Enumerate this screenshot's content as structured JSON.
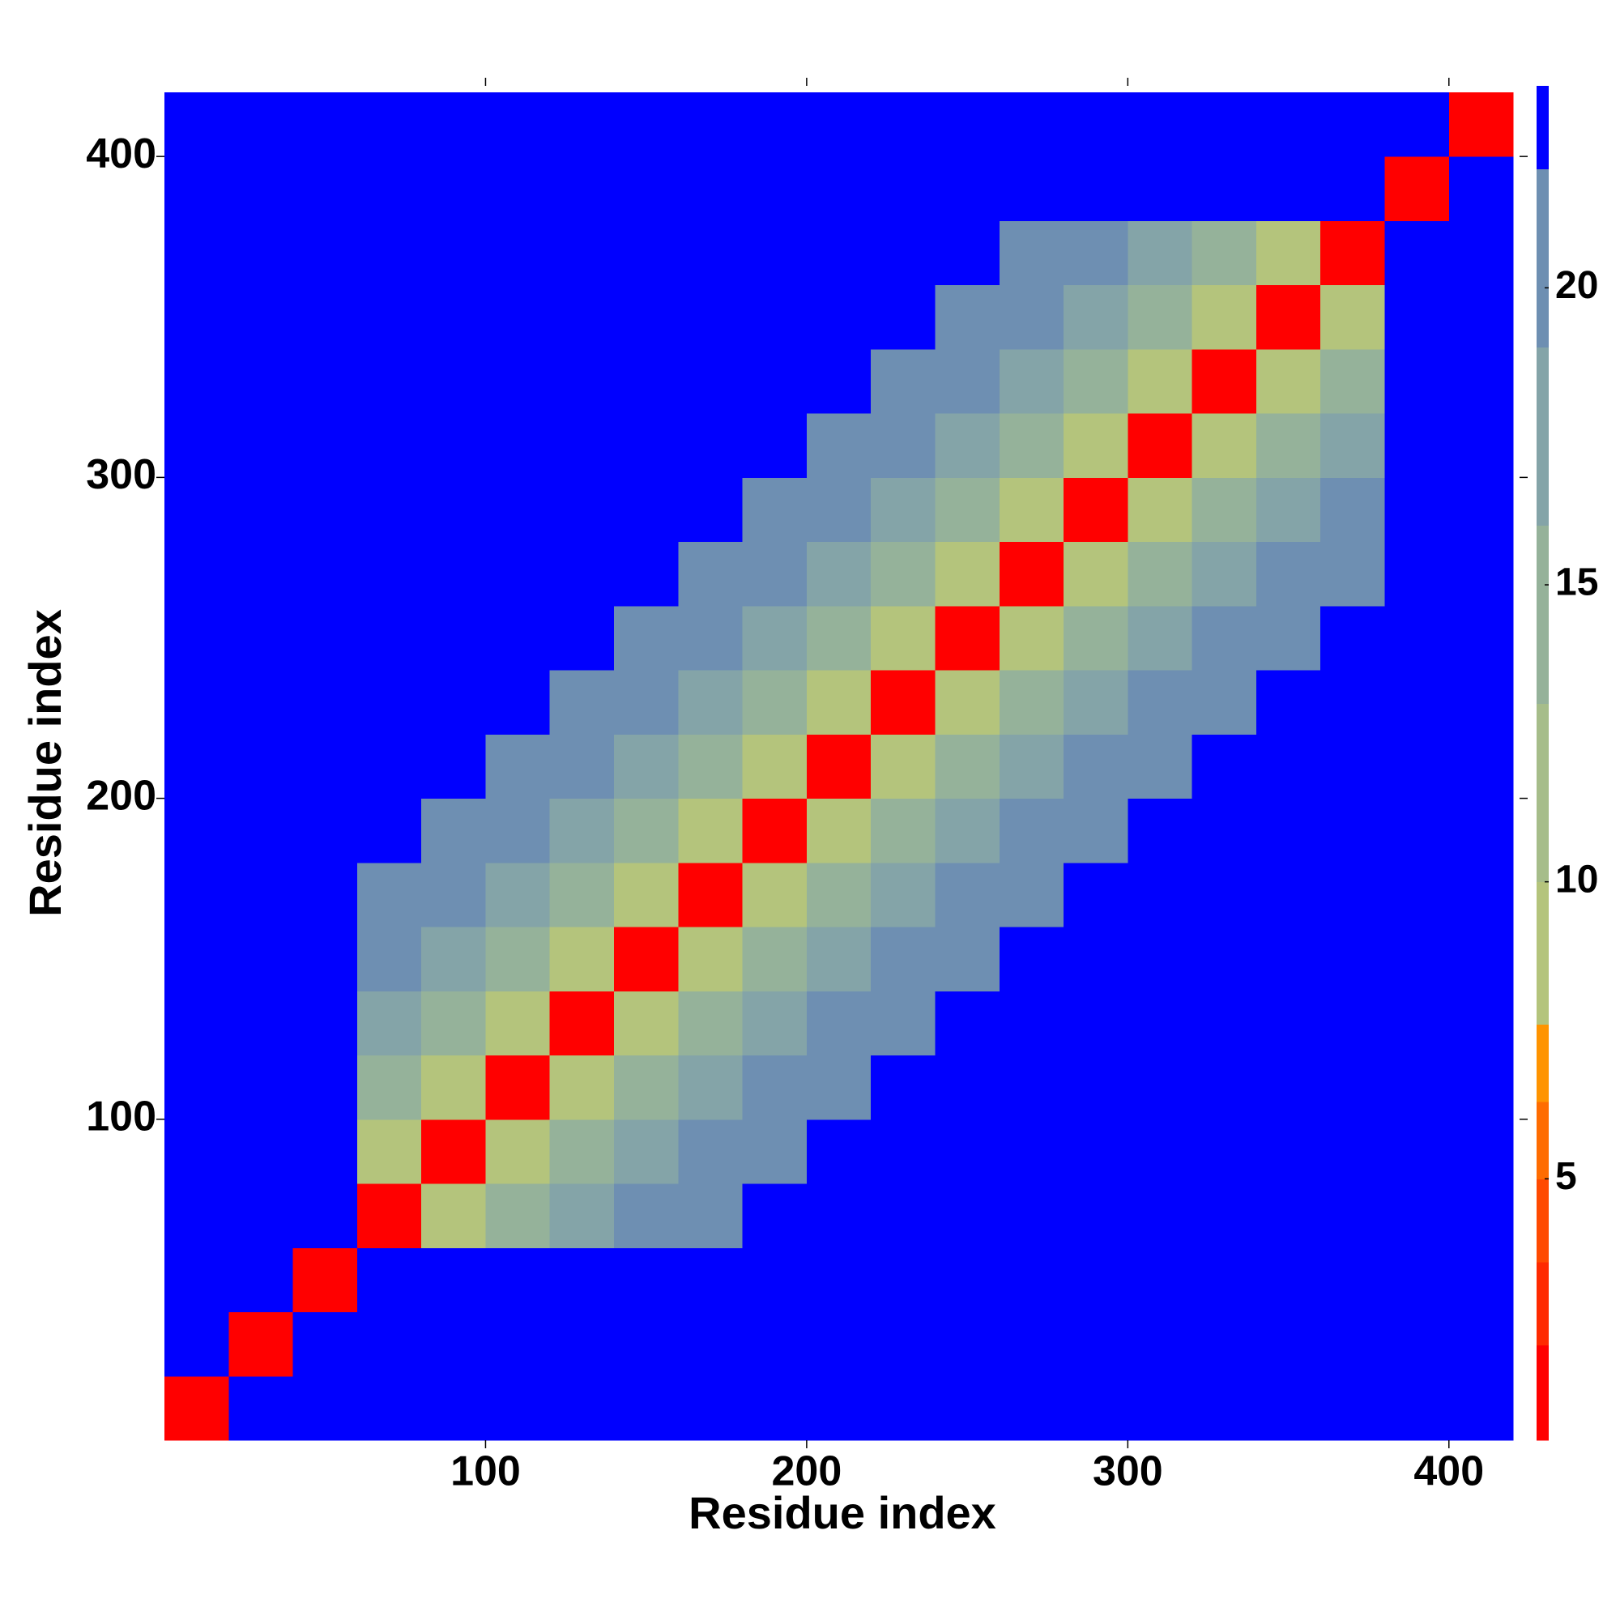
{
  "chart_data": {
    "type": "heatmap",
    "x_label": "Residue index",
    "y_label": "Residue index",
    "x": [
      10,
      30,
      50,
      70,
      90,
      110,
      130,
      150,
      170,
      190,
      210,
      230,
      250,
      270,
      290,
      310,
      330,
      350,
      370,
      390,
      410
    ],
    "y": [
      10,
      30,
      50,
      70,
      90,
      110,
      130,
      150,
      170,
      190,
      210,
      230,
      250,
      270,
      290,
      310,
      330,
      350,
      370,
      390,
      410
    ],
    "values": [
      [
        2,
        24,
        24,
        24,
        24,
        24,
        24,
        24,
        24,
        24,
        24,
        24,
        24,
        24,
        24,
        24,
        24,
        24,
        24,
        24,
        24
      ],
      [
        24,
        2,
        24,
        24,
        24,
        24,
        24,
        24,
        24,
        24,
        24,
        24,
        24,
        24,
        24,
        24,
        24,
        24,
        24,
        24,
        24
      ],
      [
        24,
        24,
        2,
        24,
        24,
        24,
        24,
        24,
        24,
        24,
        24,
        24,
        24,
        24,
        24,
        24,
        24,
        24,
        24,
        24,
        24
      ],
      [
        24,
        24,
        24,
        2,
        9,
        15,
        17,
        19,
        21,
        24,
        24,
        24,
        24,
        24,
        24,
        24,
        24,
        24,
        24,
        24,
        24
      ],
      [
        24,
        24,
        24,
        9,
        2,
        9,
        15,
        17,
        19,
        21,
        24,
        24,
        24,
        24,
        24,
        24,
        24,
        24,
        24,
        24,
        24
      ],
      [
        24,
        24,
        24,
        15,
        9,
        2,
        9,
        15,
        17,
        19,
        21,
        24,
        24,
        24,
        24,
        24,
        24,
        24,
        24,
        24,
        24
      ],
      [
        24,
        24,
        24,
        17,
        15,
        9,
        2,
        9,
        15,
        17,
        19,
        21,
        24,
        24,
        24,
        24,
        24,
        24,
        24,
        24,
        24
      ],
      [
        24,
        24,
        24,
        19,
        17,
        15,
        9,
        2,
        9,
        15,
        17,
        19,
        21,
        24,
        24,
        24,
        24,
        24,
        24,
        24,
        24
      ],
      [
        24,
        24,
        24,
        21,
        19,
        17,
        15,
        9,
        2,
        9,
        15,
        17,
        19,
        21,
        24,
        24,
        24,
        24,
        24,
        24,
        24
      ],
      [
        24,
        24,
        24,
        24,
        21,
        19,
        17,
        15,
        9,
        2,
        9,
        15,
        17,
        19,
        21,
        24,
        24,
        24,
        24,
        24,
        24
      ],
      [
        24,
        24,
        24,
        24,
        24,
        21,
        19,
        17,
        15,
        9,
        2,
        9,
        15,
        17,
        19,
        21,
        24,
        24,
        24,
        24,
        24
      ],
      [
        24,
        24,
        24,
        24,
        24,
        24,
        21,
        19,
        17,
        15,
        9,
        2,
        9,
        15,
        17,
        19,
        21,
        24,
        24,
        24,
        24
      ],
      [
        24,
        24,
        24,
        24,
        24,
        24,
        24,
        21,
        19,
        17,
        15,
        9,
        2,
        9,
        15,
        17,
        19,
        21,
        24,
        24,
        24
      ],
      [
        24,
        24,
        24,
        24,
        24,
        24,
        24,
        24,
        21,
        19,
        17,
        15,
        9,
        2,
        9,
        15,
        17,
        19,
        21,
        24,
        24
      ],
      [
        24,
        24,
        24,
        24,
        24,
        24,
        24,
        24,
        24,
        21,
        19,
        17,
        15,
        9,
        2,
        9,
        15,
        17,
        19,
        24,
        24
      ],
      [
        24,
        24,
        24,
        24,
        24,
        24,
        24,
        24,
        24,
        24,
        21,
        19,
        17,
        15,
        9,
        2,
        9,
        15,
        17,
        24,
        24
      ],
      [
        24,
        24,
        24,
        24,
        24,
        24,
        24,
        24,
        24,
        24,
        24,
        21,
        19,
        17,
        15,
        9,
        2,
        9,
        15,
        24,
        24
      ],
      [
        24,
        24,
        24,
        24,
        24,
        24,
        24,
        24,
        24,
        24,
        24,
        24,
        21,
        19,
        17,
        15,
        9,
        2,
        9,
        24,
        24
      ],
      [
        24,
        24,
        24,
        24,
        24,
        24,
        24,
        24,
        24,
        24,
        24,
        24,
        24,
        21,
        19,
        17,
        15,
        9,
        2,
        24,
        24
      ],
      [
        24,
        24,
        24,
        24,
        24,
        24,
        24,
        24,
        24,
        24,
        24,
        24,
        24,
        24,
        24,
        24,
        24,
        24,
        24,
        2,
        24
      ],
      [
        24,
        24,
        24,
        24,
        24,
        24,
        24,
        24,
        24,
        24,
        24,
        24,
        24,
        24,
        24,
        24,
        24,
        24,
        24,
        24,
        2
      ]
    ],
    "xlim": [
      0,
      422
    ],
    "ylim": [
      0,
      422
    ],
    "xticks": [
      100,
      200,
      300,
      400
    ],
    "yticks": [
      100,
      200,
      300,
      400
    ],
    "colorbar": {
      "lim": [
        0.6,
        23.4
      ],
      "ticks": [
        5,
        10,
        15,
        20
      ],
      "bounds": [
        0.6,
        2.2,
        3.6,
        5,
        6.3,
        7.6,
        10,
        13,
        16,
        19,
        22,
        23.4
      ],
      "colors": [
        "#ff0000",
        "#ff2a00",
        "#ff4a00",
        "#ff6c00",
        "#ff9400",
        "#b4c47c",
        "#a6bd8a",
        "#95b29a",
        "#84a4a8",
        "#6e8fb2",
        "#0000ff"
      ]
    }
  }
}
